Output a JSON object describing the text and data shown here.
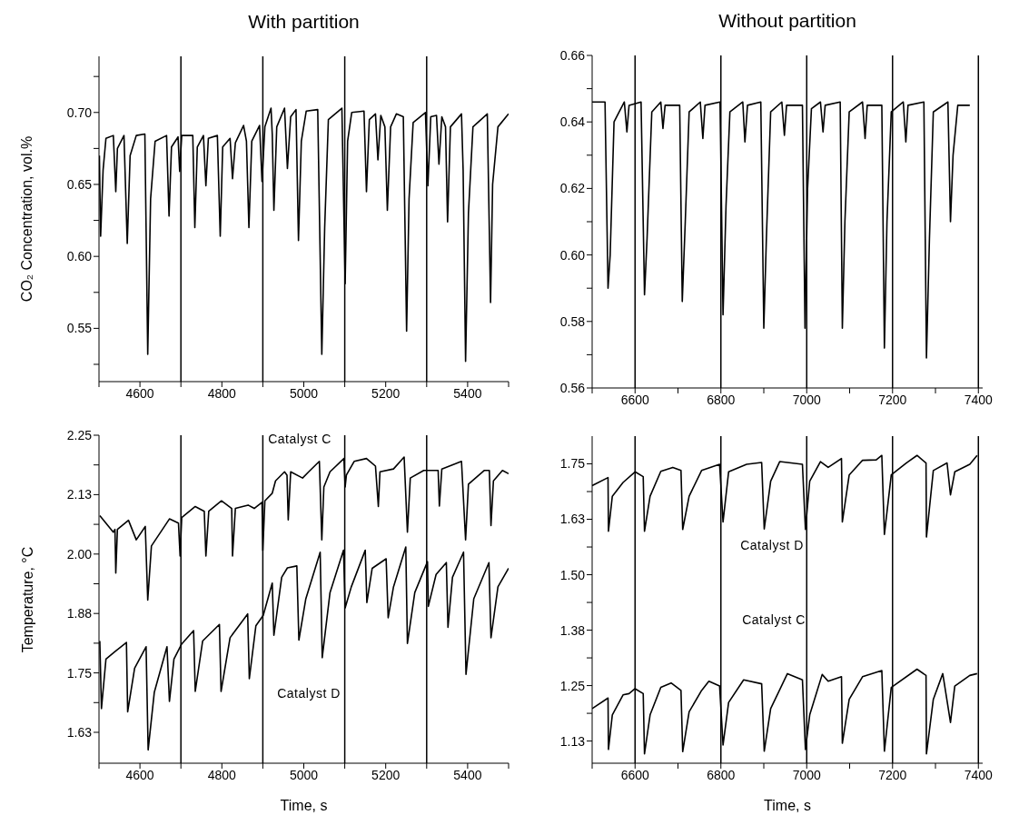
{
  "chart_data": [
    {
      "type": "line",
      "title": "With partition",
      "ylabel": "CO₂ Concentration, vol.%",
      "xlim": [
        4500,
        5500
      ],
      "ylim": [
        0.513,
        0.739
      ],
      "xticks": [
        {
          "value": 4500,
          "label": null
        },
        4600,
        {
          "value": 4700,
          "label": null
        },
        4800,
        {
          "value": 4900,
          "label": null
        },
        5000,
        {
          "value": 5100,
          "label": null
        },
        5200,
        {
          "value": 5300,
          "label": null
        },
        5400,
        {
          "value": 5500,
          "label": null
        }
      ],
      "yticks": [
        {
          "value": 0.525,
          "label": null
        },
        0.55,
        {
          "value": 0.575,
          "label": null
        },
        {
          "value": 0.6,
          "label": "0.60"
        },
        {
          "value": 0.625,
          "label": null
        },
        0.65,
        {
          "value": 0.675,
          "label": null
        },
        {
          "value": 0.7,
          "label": "0.70"
        },
        {
          "value": 0.725,
          "label": null
        }
      ],
      "ref_lines": [
        {
          "axis": "x",
          "value": 4700,
          "color": "#000000"
        },
        {
          "axis": "x",
          "value": 4900,
          "color": "#000000"
        },
        {
          "axis": "x",
          "value": 5100,
          "color": "#000000"
        },
        {
          "axis": "x",
          "value": 5300,
          "color": "#000000"
        }
      ],
      "series": [
        {
          "color": "#000000",
          "x": [
            4501,
            4504,
            4510,
            4517,
            4535,
            4541,
            4545,
            4561,
            4569,
            4576,
            4591,
            4612,
            4619,
            4626,
            4637,
            4665,
            4671,
            4677,
            4693,
            4697,
            4702,
            4729,
            4734,
            4740,
            4755,
            4761,
            4767,
            4789,
            4796,
            4802,
            4820,
            4826,
            4833,
            4853,
            4860,
            4866,
            4873,
            4892,
            4898,
            4905,
            4920,
            4923,
            4927,
            4934,
            4953,
            4960,
            4968,
            4981,
            4987,
            4994,
            5006,
            5034,
            5044,
            5051,
            5060,
            5093,
            5101,
            5107,
            5117,
            5147,
            5153,
            5160,
            5175,
            5181,
            5188,
            5198,
            5204,
            5212,
            5226,
            5243,
            5251,
            5257,
            5267,
            5297,
            5303,
            5310,
            5324,
            5330,
            5337,
            5346,
            5351,
            5358,
            5385,
            5389,
            5395,
            5402,
            5413,
            5448,
            5456,
            5461,
            5474,
            5500
          ],
          "values": [
            0.67,
            0.614,
            0.66,
            0.682,
            0.684,
            0.645,
            0.675,
            0.684,
            0.609,
            0.67,
            0.684,
            0.685,
            0.532,
            0.64,
            0.68,
            0.684,
            0.628,
            0.676,
            0.683,
            0.659,
            0.684,
            0.684,
            0.62,
            0.676,
            0.684,
            0.649,
            0.682,
            0.684,
            0.614,
            0.676,
            0.682,
            0.654,
            0.679,
            0.691,
            0.68,
            0.62,
            0.68,
            0.691,
            0.652,
            0.69,
            0.703,
            0.685,
            0.632,
            0.69,
            0.703,
            0.661,
            0.697,
            0.702,
            0.611,
            0.68,
            0.701,
            0.702,
            0.532,
            0.62,
            0.695,
            0.703,
            0.581,
            0.68,
            0.7,
            0.701,
            0.645,
            0.695,
            0.699,
            0.667,
            0.698,
            0.69,
            0.632,
            0.69,
            0.699,
            0.697,
            0.548,
            0.64,
            0.693,
            0.7,
            0.649,
            0.697,
            0.698,
            0.664,
            0.697,
            0.69,
            0.624,
            0.69,
            0.699,
            0.66,
            0.527,
            0.63,
            0.69,
            0.699,
            0.568,
            0.65,
            0.69,
            0.699
          ]
        }
      ]
    },
    {
      "type": "line",
      "title": "Without partition",
      "xlim": [
        6500,
        7410
      ],
      "ylim": [
        0.56,
        0.66
      ],
      "xticks": [
        {
          "value": 6500,
          "label": null
        },
        6600,
        {
          "value": 6700,
          "label": null
        },
        6800,
        {
          "value": 6900,
          "label": null
        },
        7000,
        {
          "value": 7100,
          "label": null
        },
        7200,
        {
          "value": 7300,
          "label": null
        },
        7400
      ],
      "yticks": [
        0.56,
        {
          "value": 0.57,
          "label": null
        },
        0.58,
        {
          "value": 0.59,
          "label": null
        },
        {
          "value": 0.6,
          "label": "0.60"
        },
        {
          "value": 0.61,
          "label": null
        },
        0.62,
        {
          "value": 0.63,
          "label": null
        },
        0.64,
        {
          "value": 0.65,
          "label": null
        },
        0.66
      ],
      "ref_lines": [
        {
          "axis": "x",
          "value": 6600,
          "color": "#000000"
        },
        {
          "axis": "x",
          "value": 6800,
          "color": "#000000"
        },
        {
          "axis": "x",
          "value": 7000,
          "color": "#000000"
        },
        {
          "axis": "x",
          "value": 7200,
          "color": "#000000"
        },
        {
          "axis": "x",
          "value": 7400,
          "color": "#000000"
        }
      ],
      "series": [
        {
          "color": "#000000",
          "x": [
            6500,
            6530,
            6537,
            6542,
            6551,
            6575,
            6581,
            6586,
            6614,
            6622,
            6628,
            6639,
            6660,
            6665,
            6670,
            6704,
            6710,
            6717,
            6726,
            6752,
            6758,
            6763,
            6798,
            6805,
            6812,
            6821,
            6851,
            6856,
            6862,
            6893,
            6900,
            6906,
            6916,
            6942,
            6948,
            6953,
            6990,
            6996,
            7002,
            7011,
            7032,
            7038,
            7043,
            7078,
            7083,
            7089,
            7099,
            7130,
            7136,
            7141,
            7175,
            7181,
            7187,
            7197,
            7225,
            7231,
            7236,
            7273,
            7279,
            7286,
            7295,
            7329,
            7335,
            7341,
            7352,
            7380
          ],
          "values": [
            0.646,
            0.646,
            0.59,
            0.6,
            0.64,
            0.646,
            0.637,
            0.645,
            0.646,
            0.588,
            0.605,
            0.643,
            0.646,
            0.638,
            0.645,
            0.645,
            0.586,
            0.61,
            0.643,
            0.646,
            0.635,
            0.645,
            0.646,
            0.582,
            0.615,
            0.643,
            0.646,
            0.634,
            0.645,
            0.646,
            0.578,
            0.605,
            0.643,
            0.646,
            0.636,
            0.645,
            0.645,
            0.578,
            0.62,
            0.644,
            0.646,
            0.637,
            0.645,
            0.646,
            0.578,
            0.61,
            0.643,
            0.646,
            0.635,
            0.645,
            0.645,
            0.572,
            0.61,
            0.643,
            0.646,
            0.634,
            0.645,
            0.646,
            0.569,
            0.605,
            0.643,
            0.646,
            0.61,
            0.63,
            0.645,
            0.645
          ]
        }
      ]
    },
    {
      "type": "line",
      "xlabel": "Time, s",
      "ylabel": "Temperature, °C",
      "xlim": [
        4500,
        5500
      ],
      "ylim": [
        1.56,
        2.25
      ],
      "xticks": [
        {
          "value": 4500,
          "label": null
        },
        4600,
        {
          "value": 4700,
          "label": null
        },
        4800,
        {
          "value": 4900,
          "label": null
        },
        5000,
        {
          "value": 5100,
          "label": null
        },
        5200,
        {
          "value": 5300,
          "label": null
        },
        5400,
        {
          "value": 5500,
          "label": null
        }
      ],
      "yticks": [
        {
          "value": 1.625,
          "label": "1.63"
        },
        {
          "value": 1.6875,
          "label": null
        },
        1.75,
        {
          "value": 1.8125,
          "label": null
        },
        {
          "value": 1.875,
          "label": "1.88"
        },
        {
          "value": 1.9375,
          "label": null
        },
        {
          "value": 2.0,
          "label": "2.00"
        },
        {
          "value": 2.0625,
          "label": null
        },
        {
          "value": 2.125,
          "label": "2.13"
        },
        {
          "value": 2.1875,
          "label": null
        },
        2.25
      ],
      "ref_lines": [
        {
          "axis": "x",
          "value": 4700,
          "color": "#000000"
        },
        {
          "axis": "x",
          "value": 4900,
          "color": "#000000"
        },
        {
          "axis": "x",
          "value": 5100,
          "color": "#000000"
        },
        {
          "axis": "x",
          "value": 5300,
          "color": "#000000"
        }
      ],
      "annotations": [
        "Catalyst C",
        "Catalyst D"
      ],
      "series": [
        {
          "color": "#000000",
          "x": [
            4502,
            4535,
            4539,
            4541,
            4545,
            4572,
            4591,
            4613,
            4619,
            4628,
            4672,
            4694,
            4698,
            4702,
            4735,
            4757,
            4761,
            4768,
            4799,
            4824,
            4826,
            4833,
            4864,
            4879,
            4898,
            4900,
            4905,
            4923,
            4931,
            4953,
            4959,
            4962,
            4968,
            4997,
            5012,
            5038,
            5044,
            5049,
            5064,
            5098,
            5101,
            5104,
            5123,
            5153,
            5175,
            5182,
            5186,
            5219,
            5245,
            5253,
            5260,
            5293,
            5328,
            5331,
            5337,
            5385,
            5395,
            5402,
            5441,
            5453,
            5457,
            5463,
            5485,
            5500
          ],
          "values": [
            2.081,
            2.046,
            2.052,
            1.96,
            2.052,
            2.071,
            2.03,
            2.058,
            1.903,
            2.017,
            2.074,
            2.065,
            1.996,
            2.077,
            2.1,
            2.09,
            1.996,
            2.09,
            2.112,
            2.096,
            1.996,
            2.096,
            2.103,
            2.096,
            2.109,
            2.008,
            2.112,
            2.128,
            2.154,
            2.173,
            2.166,
            2.072,
            2.173,
            2.16,
            2.173,
            2.195,
            2.03,
            2.141,
            2.173,
            2.201,
            2.141,
            2.166,
            2.195,
            2.201,
            2.185,
            2.1,
            2.173,
            2.179,
            2.204,
            2.046,
            2.16,
            2.176,
            2.176,
            2.101,
            2.179,
            2.195,
            2.03,
            2.147,
            2.176,
            2.176,
            2.06,
            2.154,
            2.176,
            2.169
          ]
        },
        {
          "color": "#000000",
          "x": [
            4502,
            4506,
            4517,
            4539,
            4567,
            4570,
            4587,
            4615,
            4620,
            4635,
            4666,
            4672,
            4683,
            4702,
            4731,
            4735,
            4753,
            4794,
            4798,
            4820,
            4863,
            4867,
            4883,
            4901,
            4923,
            4927,
            4946,
            4960,
            4983,
            4988,
            5005,
            5040,
            5045,
            5064,
            5097,
            5101,
            5116,
            5150,
            5154,
            5167,
            5201,
            5206,
            5219,
            5249,
            5253,
            5271,
            5302,
            5304,
            5323,
            5348,
            5352,
            5363,
            5390,
            5396,
            5415,
            5452,
            5457,
            5474,
            5500
          ],
          "values": [
            1.817,
            1.675,
            1.779,
            1.795,
            1.814,
            1.668,
            1.76,
            1.805,
            1.588,
            1.709,
            1.805,
            1.69,
            1.779,
            1.811,
            1.839,
            1.711,
            1.817,
            1.852,
            1.711,
            1.824,
            1.874,
            1.738,
            1.849,
            1.871,
            1.939,
            1.829,
            1.951,
            1.971,
            1.975,
            1.819,
            1.906,
            2.004,
            1.782,
            1.919,
            2.008,
            1.887,
            1.931,
            2.008,
            1.898,
            1.97,
            1.99,
            1.866,
            1.931,
            2.015,
            1.812,
            1.919,
            1.984,
            1.89,
            1.957,
            1.982,
            1.846,
            1.951,
            2.004,
            1.747,
            1.906,
            1.982,
            1.824,
            1.931,
            1.97
          ]
        }
      ]
    },
    {
      "type": "line",
      "xlabel": "Time, s",
      "xlim": [
        6500,
        7410
      ],
      "ylim": [
        1.075,
        1.8125
      ],
      "xticks": [
        {
          "value": 6500,
          "label": null
        },
        6600,
        {
          "value": 6700,
          "label": null
        },
        6800,
        {
          "value": 6900,
          "label": null
        },
        7000,
        {
          "value": 7100,
          "label": null
        },
        7200,
        {
          "value": 7300,
          "label": null
        },
        7400
      ],
      "yticks": [
        {
          "value": 1.125,
          "label": "1.13"
        },
        {
          "value": 1.1875,
          "label": null
        },
        1.25,
        {
          "value": 1.3125,
          "label": null
        },
        {
          "value": 1.375,
          "label": "1.38"
        },
        {
          "value": 1.4375,
          "label": null
        },
        {
          "value": 1.5,
          "label": "1.50"
        },
        {
          "value": 1.5625,
          "label": null
        },
        {
          "value": 1.625,
          "label": "1.63"
        },
        {
          "value": 1.6875,
          "label": null
        },
        1.75
      ],
      "ref_lines": [
        {
          "axis": "x",
          "value": 6600,
          "color": "#000000"
        },
        {
          "axis": "x",
          "value": 6800,
          "color": "#000000"
        },
        {
          "axis": "x",
          "value": 7000,
          "color": "#000000"
        },
        {
          "axis": "x",
          "value": 7200,
          "color": "#000000"
        },
        {
          "axis": "x",
          "value": 7400,
          "color": "#000000"
        }
      ],
      "annotations": [
        "Catalyst D",
        "Catalyst C"
      ],
      "series": [
        {
          "color": "#000000",
          "x": [
            6500,
            6537,
            6538,
            6547,
            6572,
            6600,
            6619,
            6622,
            6635,
            6660,
            6688,
            6707,
            6711,
            6726,
            6755,
            6797,
            6805,
            6818,
            6860,
            6895,
            6901,
            6916,
            6937,
            6990,
            6997,
            7007,
            7032,
            7050,
            7081,
            7083,
            7099,
            7130,
            7162,
            7175,
            7181,
            7197,
            7232,
            7257,
            7278,
            7279,
            7295,
            7327,
            7335,
            7345,
            7380,
            7397
          ],
          "values": [
            1.701,
            1.719,
            1.598,
            1.677,
            1.708,
            1.732,
            1.721,
            1.598,
            1.677,
            1.733,
            1.742,
            1.735,
            1.602,
            1.677,
            1.735,
            1.749,
            1.619,
            1.732,
            1.749,
            1.753,
            1.603,
            1.711,
            1.755,
            1.749,
            1.602,
            1.711,
            1.755,
            1.742,
            1.762,
            1.619,
            1.725,
            1.758,
            1.759,
            1.769,
            1.591,
            1.725,
            1.752,
            1.769,
            1.752,
            1.585,
            1.735,
            1.752,
            1.68,
            1.732,
            1.749,
            1.769
          ]
        },
        {
          "color": "#000000",
          "x": [
            6500,
            6537,
            6538,
            6547,
            6572,
            6586,
            6600,
            6619,
            6622,
            6635,
            6660,
            6684,
            6707,
            6711,
            6726,
            6755,
            6772,
            6797,
            6805,
            6818,
            6853,
            6895,
            6901,
            6916,
            6955,
            6990,
            6997,
            7007,
            7036,
            7050,
            7081,
            7083,
            7099,
            7130,
            7175,
            7181,
            7197,
            7257,
            7278,
            7279,
            7295,
            7317,
            7335,
            7345,
            7380,
            7397
          ],
          "values": [
            1.198,
            1.222,
            1.106,
            1.184,
            1.229,
            1.232,
            1.243,
            1.232,
            1.096,
            1.184,
            1.246,
            1.256,
            1.239,
            1.101,
            1.191,
            1.239,
            1.26,
            1.249,
            1.116,
            1.212,
            1.263,
            1.254,
            1.102,
            1.198,
            1.277,
            1.263,
            1.106,
            1.184,
            1.275,
            1.26,
            1.27,
            1.12,
            1.219,
            1.27,
            1.284,
            1.102,
            1.246,
            1.287,
            1.273,
            1.096,
            1.219,
            1.277,
            1.167,
            1.249,
            1.273,
            1.277
          ]
        }
      ]
    }
  ]
}
